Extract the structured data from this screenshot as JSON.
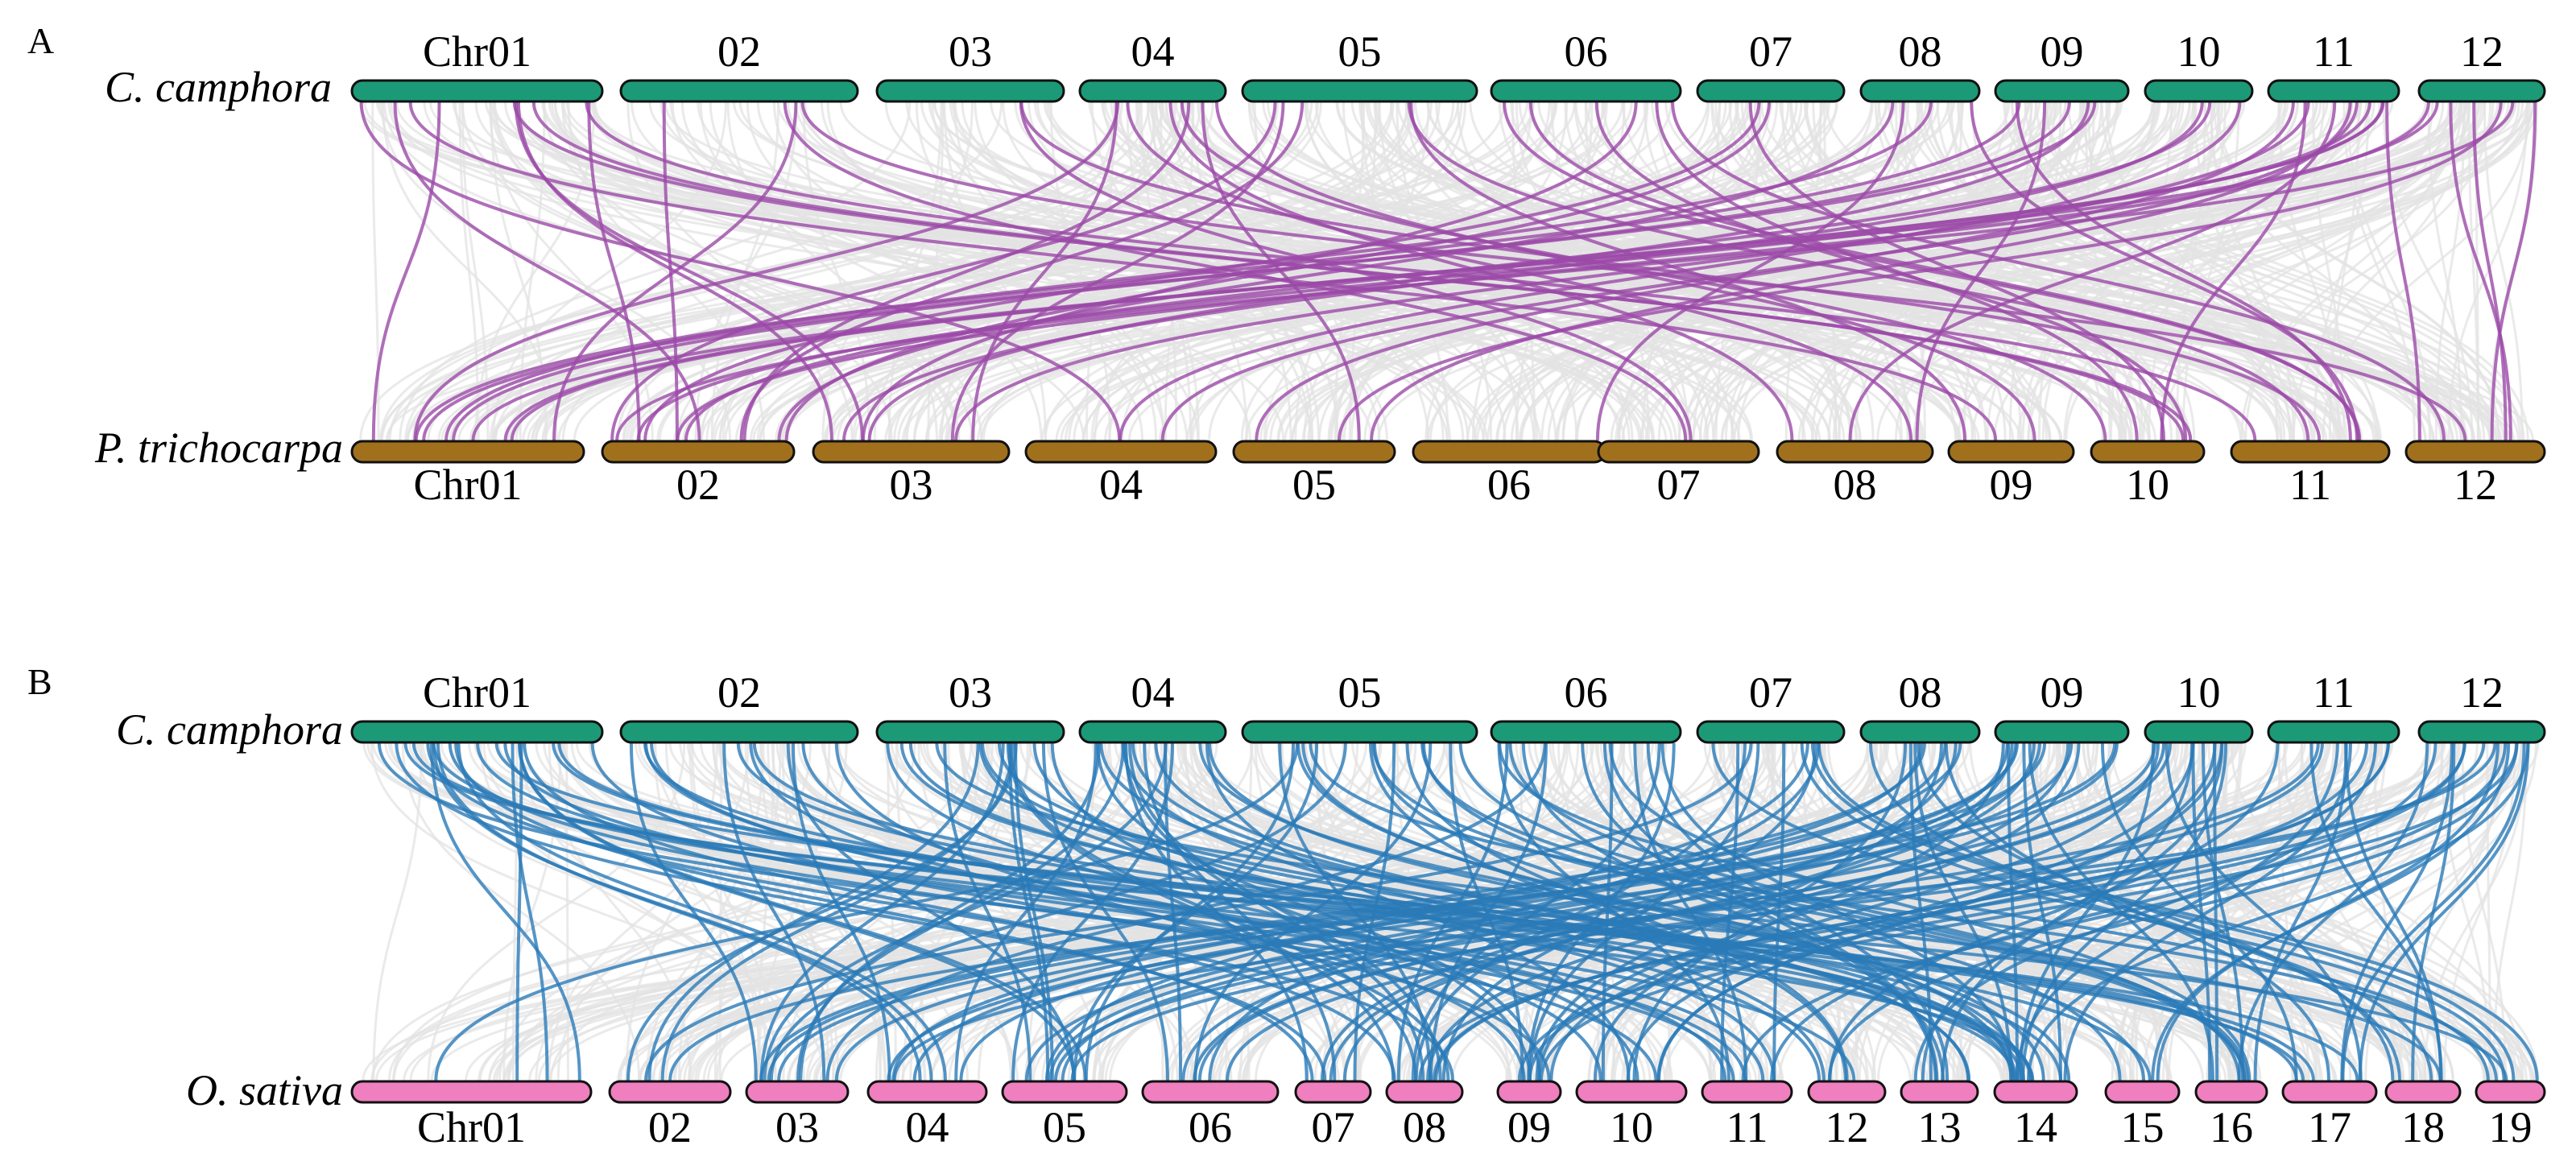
{
  "colors": {
    "background_links": "#e3e3e3",
    "camphora_chromosome": "#1c9a78",
    "trichocarpa_chromosome": "#a0701c",
    "sativa_chromosome": "#ef7fbe",
    "panel_a_links": "#9b4aa8",
    "panel_b_links": "#2a7ab8",
    "outline": "#111111"
  },
  "panels": [
    {
      "letter": "A",
      "top_species": "C. camphora",
      "bottom_species": "P. trichocarpa",
      "top_chromosomes": [
        "Chr01",
        "02",
        "03",
        "04",
        "05",
        "06",
        "07",
        "08",
        "09",
        "10",
        "11",
        "12"
      ],
      "bottom_chromosomes": [
        "Chr01",
        "02",
        "03",
        "04",
        "05",
        "06",
        "07",
        "08",
        "09",
        "10",
        "11",
        "12"
      ],
      "highlighted_link_color": "purple",
      "background_link_color": "light-gray"
    },
    {
      "letter": "B",
      "top_species": "C. camphora",
      "bottom_species": "O. sativa",
      "top_chromosomes": [
        "Chr01",
        "02",
        "03",
        "04",
        "05",
        "06",
        "07",
        "08",
        "09",
        "10",
        "11",
        "12"
      ],
      "bottom_chromosomes": [
        "Chr01",
        "02",
        "03",
        "04",
        "05",
        "06",
        "07",
        "08",
        "09",
        "10",
        "11",
        "12",
        "13",
        "14",
        "15",
        "16",
        "17",
        "18",
        "19"
      ],
      "highlighted_link_color": "blue",
      "background_link_color": "light-gray"
    }
  ]
}
